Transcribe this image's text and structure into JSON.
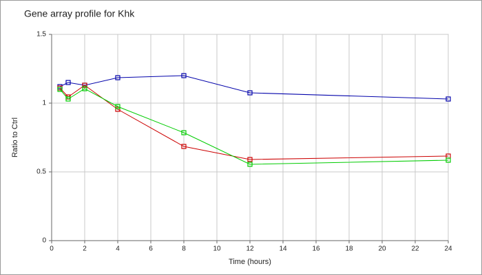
{
  "chart_data": {
    "type": "line",
    "title": "Gene array profile for Khk",
    "x_label": "Time (hours)",
    "y_label": "Ratio to Ctrl",
    "x": [
      0.5,
      1,
      2,
      4,
      8,
      12,
      24
    ],
    "series": [
      {
        "color": "#0000aa",
        "values": [
          1.12,
          1.15,
          1.13,
          1.185,
          1.2,
          1.075,
          1.03
        ]
      },
      {
        "color": "#cc0000",
        "values": [
          1.11,
          1.045,
          1.13,
          0.955,
          0.685,
          0.59,
          0.615
        ]
      },
      {
        "color": "#00cc00",
        "values": [
          1.1,
          1.03,
          1.105,
          0.975,
          0.785,
          0.555,
          0.585
        ]
      }
    ],
    "xlim": [
      0,
      24
    ],
    "xticks": [
      0,
      2,
      4,
      6,
      8,
      10,
      12,
      14,
      16,
      18,
      20,
      22,
      24
    ],
    "ylim": [
      0,
      1.5
    ],
    "yticks": [
      0,
      0.5,
      1,
      1.5
    ],
    "grid": true
  }
}
